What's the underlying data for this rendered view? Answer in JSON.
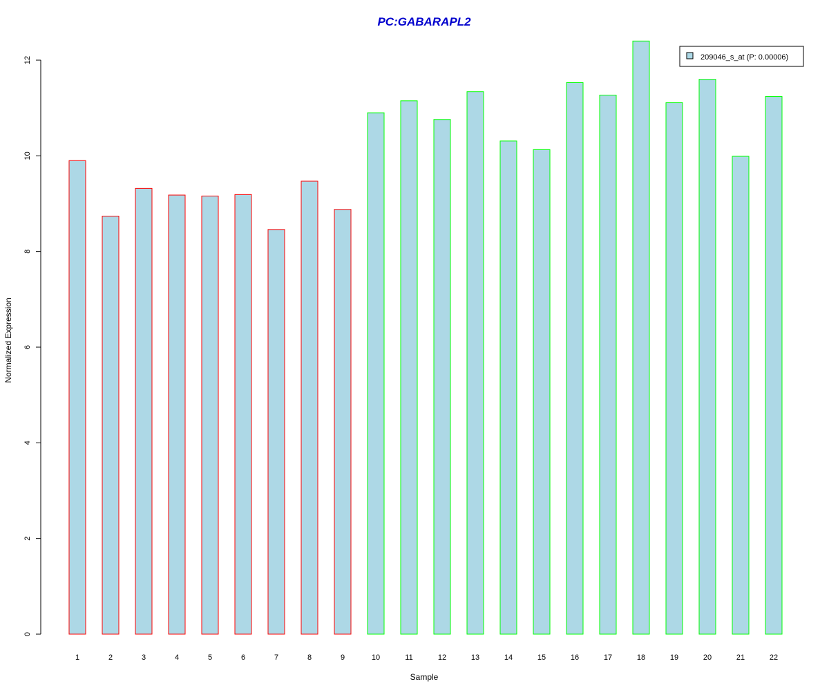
{
  "chart_data": {
    "type": "bar",
    "title": "PC:GABARAPL2",
    "xlabel": "Sample",
    "ylabel": "Normalized Expression",
    "ylim": [
      0,
      12
    ],
    "yticks": [
      0,
      2,
      4,
      6,
      8,
      10,
      12
    ],
    "grid": false,
    "legend_position": "top-right",
    "categories": [
      "1",
      "2",
      "3",
      "4",
      "5",
      "6",
      "7",
      "8",
      "9",
      "10",
      "11",
      "12",
      "13",
      "14",
      "15",
      "16",
      "17",
      "18",
      "19",
      "20",
      "21",
      "22"
    ],
    "series": [
      {
        "name": "209046_s_at (P: 0.00006)",
        "values": [
          9.9,
          8.74,
          9.32,
          9.18,
          9.16,
          9.19,
          8.46,
          9.47,
          8.88,
          10.9,
          11.15,
          10.76,
          11.34,
          10.31,
          10.13,
          11.53,
          11.27,
          12.4,
          11.11,
          11.6,
          9.99,
          11.24
        ]
      }
    ],
    "groups": [
      "red",
      "red",
      "red",
      "red",
      "red",
      "red",
      "red",
      "red",
      "red",
      "green",
      "green",
      "green",
      "green",
      "green",
      "green",
      "green",
      "green",
      "green",
      "green",
      "green",
      "green",
      "green"
    ],
    "colors": {
      "fill": "#add8e6",
      "group_red": "#ff0000",
      "group_green": "#00ff00",
      "title": "#0000cd"
    }
  }
}
